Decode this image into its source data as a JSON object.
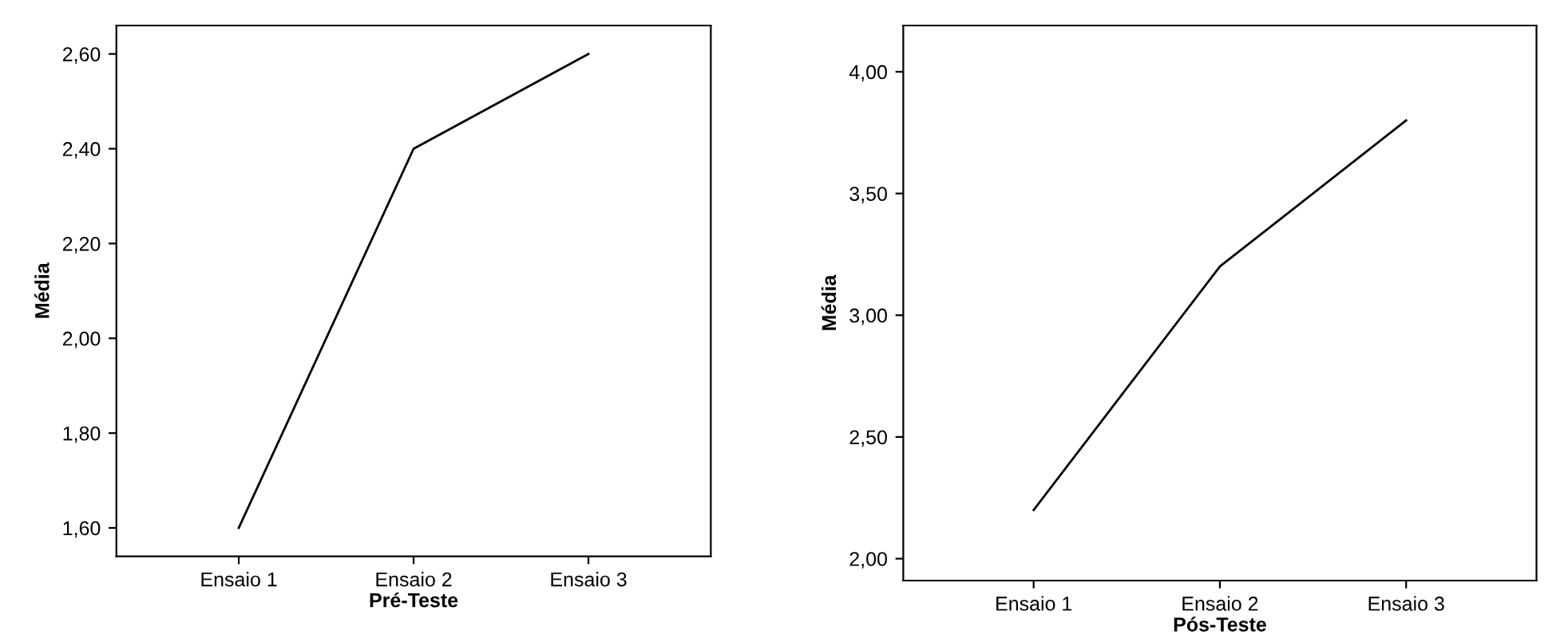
{
  "chart_data": [
    {
      "type": "line",
      "xlabel": "Pré-Teste",
      "ylabel": "Média",
      "categories": [
        "Ensaio 1",
        "Ensaio 2",
        "Ensaio 3"
      ],
      "series": [
        {
          "color": "#000000",
          "values": [
            1.6,
            2.4,
            2.6
          ]
        }
      ],
      "ylim": [
        1.54,
        2.66
      ],
      "yticks": [
        {
          "value": 1.6,
          "label": "1,60"
        },
        {
          "value": 1.8,
          "label": "1,80"
        },
        {
          "value": 2.0,
          "label": "2,00"
        },
        {
          "value": 2.2,
          "label": "2,20"
        },
        {
          "value": 2.4,
          "label": "2,40"
        },
        {
          "value": 2.6,
          "label": "2,60"
        }
      ],
      "grid": false,
      "marker": "none",
      "line_style": "solid"
    },
    {
      "type": "line",
      "xlabel": "Pós-Teste",
      "ylabel": "Média",
      "categories": [
        "Ensaio 1",
        "Ensaio 2",
        "Ensaio 3"
      ],
      "series": [
        {
          "color": "#000000",
          "values": [
            2.2,
            3.2,
            3.8
          ]
        }
      ],
      "ylim": [
        1.91,
        4.19
      ],
      "yticks": [
        {
          "value": 2.0,
          "label": "2,00"
        },
        {
          "value": 2.5,
          "label": "2,50"
        },
        {
          "value": 3.0,
          "label": "3,00"
        },
        {
          "value": 3.5,
          "label": "3,50"
        },
        {
          "value": 4.0,
          "label": "4,00"
        }
      ],
      "grid": false,
      "marker": "none",
      "line_style": "solid"
    }
  ]
}
